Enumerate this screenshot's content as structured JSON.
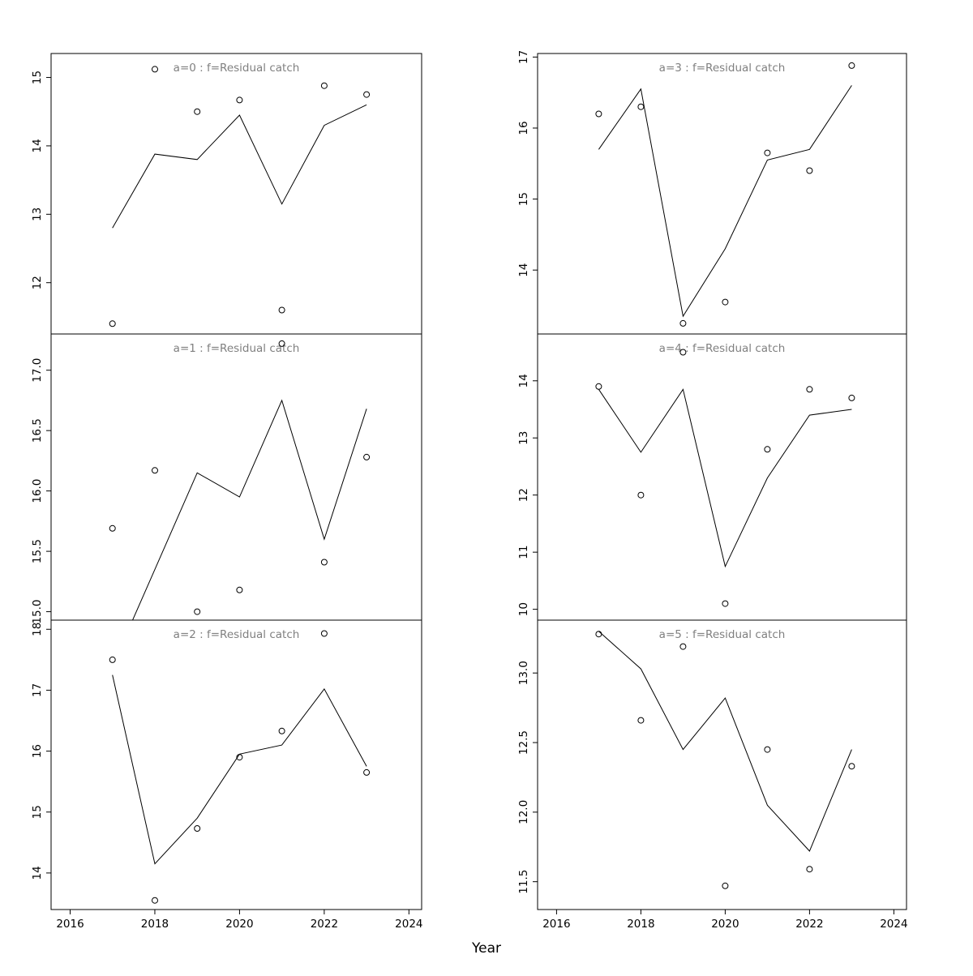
{
  "figure": {
    "xlabel": "Year",
    "background": "#ffffff",
    "title_color": "#808080",
    "line_color": "#000000",
    "point_color": "#000000"
  },
  "chart_data": [
    {
      "type": "line",
      "title": "a=0  :  f=Residual catch",
      "x": [
        2017,
        2018,
        2019,
        2020,
        2021,
        2022,
        2023
      ],
      "series": [
        {
          "name": "fitted line",
          "style": "line",
          "values": [
            12.8,
            13.88,
            13.8,
            14.45,
            13.15,
            14.3,
            14.6
          ]
        },
        {
          "name": "observed points",
          "style": "points",
          "values": [
            11.4,
            15.12,
            14.5,
            14.67,
            11.6,
            14.88,
            14.75
          ]
        }
      ],
      "xlim": [
        2015.55,
        2024.3
      ],
      "xticks": [
        2016,
        2018,
        2020,
        2022,
        2024
      ],
      "ylim": [
        11.25,
        15.35
      ],
      "ytick_values": [
        12,
        13,
        14,
        15
      ],
      "ytick_labels": [
        "12",
        "13",
        "14",
        "15"
      ],
      "grid": false,
      "panel": {
        "col": 0,
        "row": 0
      }
    },
    {
      "type": "line",
      "title": "a=1  :  f=Residual catch",
      "x": [
        2017,
        2018,
        2019,
        2020,
        2021,
        2022,
        2023
      ],
      "series": [
        {
          "name": "fitted line",
          "style": "line",
          "values": [
            14.55,
            15.35,
            16.15,
            15.95,
            16.75,
            15.6,
            16.68
          ]
        },
        {
          "name": "observed points",
          "style": "points",
          "values": [
            15.69,
            16.17,
            15.0,
            15.18,
            17.22,
            15.41,
            16.28
          ]
        }
      ],
      "xlim": [
        2015.55,
        2024.3
      ],
      "xticks": [
        2016,
        2018,
        2020,
        2022,
        2024
      ],
      "ylim": [
        14.93,
        17.3
      ],
      "ytick_values": [
        15.0,
        15.5,
        16.0,
        16.5,
        17.0
      ],
      "ytick_labels": [
        "15.0",
        "15.5",
        "16.0",
        "16.5",
        "17.0"
      ],
      "grid": false,
      "panel": {
        "col": 0,
        "row": 1
      }
    },
    {
      "type": "line",
      "title": "a=2  :  f=Residual catch",
      "x": [
        2017,
        2018,
        2019,
        2020,
        2021,
        2022,
        2023
      ],
      "series": [
        {
          "name": "fitted line",
          "style": "line",
          "values": [
            17.25,
            14.15,
            14.9,
            15.95,
            16.1,
            17.02,
            15.75
          ]
        },
        {
          "name": "observed points",
          "style": "points",
          "values": [
            17.5,
            13.55,
            14.73,
            15.9,
            16.33,
            17.93,
            15.65
          ]
        }
      ],
      "xlim": [
        2015.55,
        2024.3
      ],
      "xticks": [
        2016,
        2018,
        2020,
        2022,
        2024
      ],
      "ylim": [
        13.4,
        18.15
      ],
      "ytick_values": [
        14,
        15,
        16,
        17,
        18
      ],
      "ytick_labels": [
        "14",
        "15",
        "16",
        "17",
        "18"
      ],
      "grid": false,
      "panel": {
        "col": 0,
        "row": 2
      }
    },
    {
      "type": "line",
      "title": "a=3  :  f=Residual catch",
      "x": [
        2017,
        2018,
        2019,
        2020,
        2021,
        2022,
        2023
      ],
      "series": [
        {
          "name": "fitted line",
          "style": "line",
          "values": [
            15.7,
            16.55,
            13.35,
            14.3,
            15.55,
            15.7,
            16.6
          ]
        },
        {
          "name": "observed points",
          "style": "points",
          "values": [
            16.2,
            16.3,
            13.25,
            13.55,
            15.65,
            15.4,
            16.88
          ]
        }
      ],
      "xlim": [
        2015.55,
        2024.3
      ],
      "xticks": [
        2016,
        2018,
        2020,
        2022,
        2024
      ],
      "ylim": [
        13.1,
        17.05
      ],
      "ytick_values": [
        14,
        15,
        16,
        17
      ],
      "ytick_labels": [
        "14",
        "15",
        "16",
        "17"
      ],
      "grid": false,
      "panel": {
        "col": 1,
        "row": 0
      }
    },
    {
      "type": "line",
      "title": "a=4  :  f=Residual catch",
      "x": [
        2017,
        2018,
        2019,
        2020,
        2021,
        2022,
        2023
      ],
      "series": [
        {
          "name": "fitted line",
          "style": "line",
          "values": [
            13.85,
            12.75,
            13.85,
            10.75,
            12.3,
            13.4,
            13.5
          ]
        },
        {
          "name": "observed points",
          "style": "points",
          "values": [
            13.9,
            12.0,
            14.5,
            10.1,
            12.8,
            13.85,
            13.7
          ]
        }
      ],
      "xlim": [
        2015.55,
        2024.3
      ],
      "xticks": [
        2016,
        2018,
        2020,
        2022,
        2024
      ],
      "ylim": [
        9.81,
        14.82
      ],
      "ytick_values": [
        10,
        11,
        12,
        13,
        14
      ],
      "ytick_labels": [
        "10",
        "11",
        "12",
        "13",
        "14"
      ],
      "grid": false,
      "panel": {
        "col": 1,
        "row": 1
      }
    },
    {
      "type": "line",
      "title": "a=5  :  f=Residual catch",
      "x": [
        2017,
        2018,
        2019,
        2020,
        2021,
        2022,
        2023
      ],
      "series": [
        {
          "name": "fitted line",
          "style": "line",
          "values": [
            13.3,
            13.03,
            12.45,
            12.82,
            12.05,
            11.72,
            12.45
          ]
        },
        {
          "name": "observed points",
          "style": "points",
          "values": [
            13.28,
            12.66,
            13.19,
            11.47,
            12.45,
            11.59,
            12.33
          ]
        }
      ],
      "xlim": [
        2015.55,
        2024.3
      ],
      "xticks": [
        2016,
        2018,
        2020,
        2022,
        2024
      ],
      "ylim": [
        11.3,
        13.38
      ],
      "ytick_values": [
        11.5,
        12.0,
        12.5,
        13.0
      ],
      "ytick_labels": [
        "11.5",
        "12.0",
        "12.5",
        "13.0"
      ],
      "grid": false,
      "panel": {
        "col": 1,
        "row": 2
      }
    }
  ]
}
